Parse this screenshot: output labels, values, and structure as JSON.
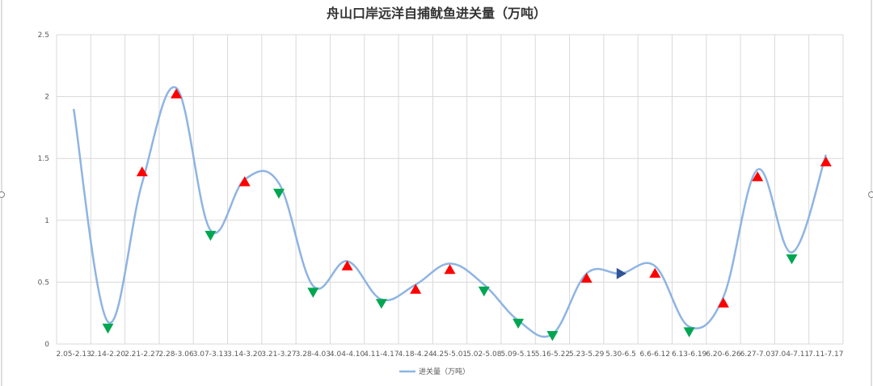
{
  "chart_data": {
    "type": "line",
    "title": "舟山口岸远洋自捕鱿鱼进关量（万吨）",
    "xlabel": "",
    "ylabel": "",
    "ylim": [
      0,
      2.5
    ],
    "yticks": [
      "0",
      "0.5",
      "1",
      "1.5",
      "2",
      "2.5"
    ],
    "grid": true,
    "legend_position": "bottom",
    "categories": [
      "2.05-2.13",
      "2.14-2.20",
      "2.21-2.27",
      "2.28-3.06",
      "3.07-3.13",
      "3.14-3.20",
      "3.21-3.27",
      "3.28-4.03",
      "4.04-4.10",
      "4.11-4.17",
      "4.18-4.24",
      "4.25-5.01",
      "5.02-5.08",
      "5.09-5.15",
      "5.16-5.22",
      "5.23-5.29",
      "5.30-6.5",
      "6.6-6.12",
      "6.13-6.19",
      "6.20-6.26",
      "6.27-7.03",
      "7.04-7.11",
      "7.11-7.17"
    ],
    "series": [
      {
        "name": "进关量（万吨）",
        "color": "#8eb4e3",
        "values": [
          1.9,
          0.18,
          1.3,
          2.07,
          0.92,
          1.33,
          1.3,
          0.47,
          0.67,
          0.36,
          0.48,
          0.65,
          0.48,
          0.19,
          0.08,
          0.57,
          0.57,
          0.63,
          0.14,
          0.38,
          1.41,
          0.74,
          1.53
        ]
      }
    ],
    "markers": [
      {
        "category": "2.14-2.20",
        "value": 0.13,
        "shape": "triangle-down",
        "color": "#00a651"
      },
      {
        "category": "2.21-2.27",
        "value": 1.39,
        "shape": "triangle-up",
        "color": "#ff0000"
      },
      {
        "category": "2.28-3.06",
        "value": 2.02,
        "shape": "triangle-up",
        "color": "#ff0000"
      },
      {
        "category": "3.07-3.13",
        "value": 0.88,
        "shape": "triangle-down",
        "color": "#00a651"
      },
      {
        "category": "3.14-3.20",
        "value": 1.31,
        "shape": "triangle-up",
        "color": "#ff0000"
      },
      {
        "category": "3.21-3.27",
        "value": 1.22,
        "shape": "triangle-down",
        "color": "#00a651"
      },
      {
        "category": "3.28-4.03",
        "value": 0.42,
        "shape": "triangle-down",
        "color": "#00a651"
      },
      {
        "category": "4.04-4.10",
        "value": 0.63,
        "shape": "triangle-up",
        "color": "#ff0000"
      },
      {
        "category": "4.11-4.17",
        "value": 0.33,
        "shape": "triangle-down",
        "color": "#00a651"
      },
      {
        "category": "4.18-4.24",
        "value": 0.44,
        "shape": "triangle-up",
        "color": "#ff0000"
      },
      {
        "category": "4.25-5.01",
        "value": 0.6,
        "shape": "triangle-up",
        "color": "#ff0000"
      },
      {
        "category": "5.02-5.08",
        "value": 0.43,
        "shape": "triangle-down",
        "color": "#00a651"
      },
      {
        "category": "5.09-5.15",
        "value": 0.17,
        "shape": "triangle-down",
        "color": "#00a651"
      },
      {
        "category": "5.16-5.22",
        "value": 0.07,
        "shape": "triangle-down",
        "color": "#00a651"
      },
      {
        "category": "5.23-5.29",
        "value": 0.53,
        "shape": "triangle-up",
        "color": "#ff0000"
      },
      {
        "category": "5.30-6.5",
        "value": 0.57,
        "shape": "triangle-right",
        "color": "#2f5597"
      },
      {
        "category": "6.6-6.12",
        "value": 0.57,
        "shape": "triangle-up",
        "color": "#ff0000"
      },
      {
        "category": "6.13-6.19",
        "value": 0.1,
        "shape": "triangle-down",
        "color": "#00a651"
      },
      {
        "category": "6.20-6.26",
        "value": 0.33,
        "shape": "triangle-up",
        "color": "#ff0000"
      },
      {
        "category": "6.27-7.03",
        "value": 1.35,
        "shape": "triangle-up",
        "color": "#ff0000"
      },
      {
        "category": "7.04-7.11",
        "value": 0.69,
        "shape": "triangle-down",
        "color": "#00a651"
      },
      {
        "category": "7.11-7.17",
        "value": 1.47,
        "shape": "triangle-up",
        "color": "#ff0000"
      }
    ]
  }
}
